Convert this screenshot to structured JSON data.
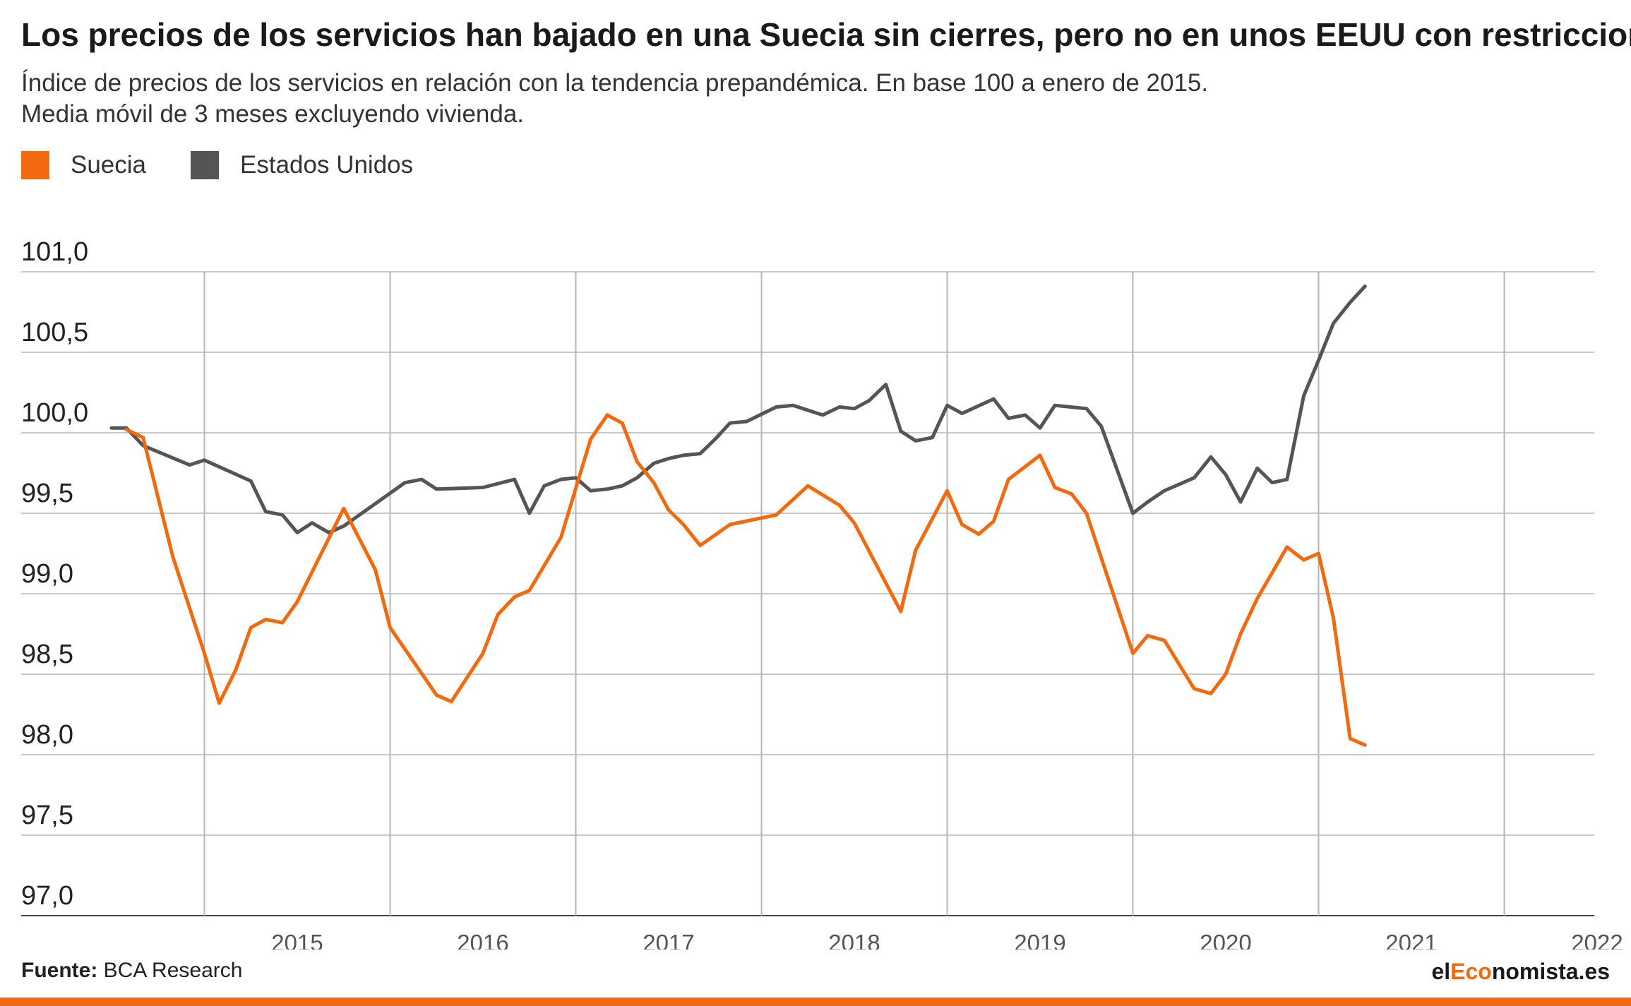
{
  "header": {
    "title": "Los precios de los servicios han bajado en una Suecia sin cierres, pero no en unos EEUU con restricciones",
    "subtitle_line1": "Índice de precios de los servicios en relación con la tendencia prepandémica. En base 100 a enero de 2015.",
    "subtitle_line2": "Media móvil de 3 meses excluyendo vivienda."
  },
  "legend": [
    {
      "label": "Suecia",
      "color": "#f26a10"
    },
    {
      "label": "Estados Unidos",
      "color": "#555555"
    }
  ],
  "footer": {
    "source_label": "Fuente:",
    "source_text": "BCA Research",
    "brand_prefix": "el",
    "brand_highlight": "Eco",
    "brand_suffix": "nomista.es",
    "brand_colors": {
      "text": "#1a1a1a",
      "highlight": "#f26a10"
    },
    "bar_color": "#f26a10"
  },
  "chart_data": {
    "type": "line",
    "ylim": [
      97.0,
      101.0
    ],
    "xlim": [
      2014.0,
      2022.0
    ],
    "y_ticks": [
      {
        "value": 101.0,
        "label": "101,0"
      },
      {
        "value": 100.5,
        "label": "100,5"
      },
      {
        "value": 100.0,
        "label": "100,0"
      },
      {
        "value": 99.5,
        "label": "99,5"
      },
      {
        "value": 99.0,
        "label": "99,0"
      },
      {
        "value": 98.5,
        "label": "98,5"
      },
      {
        "value": 98.0,
        "label": "98,0"
      },
      {
        "value": 97.5,
        "label": "97,5"
      },
      {
        "value": 97.0,
        "label": "97,0"
      }
    ],
    "x_ticks": [
      {
        "value": 2015,
        "label": "2015"
      },
      {
        "value": 2016,
        "label": "2016"
      },
      {
        "value": 2017,
        "label": "2017"
      },
      {
        "value": 2018,
        "label": "2018"
      },
      {
        "value": 2019,
        "label": "2019"
      },
      {
        "value": 2020,
        "label": "2020"
      },
      {
        "value": 2021,
        "label": "2021"
      },
      {
        "value": 2022,
        "label": "2022"
      }
    ],
    "x_gridlines": [
      2014.5,
      2015.5,
      2016.5,
      2017.5,
      2018.5,
      2019.5,
      2020.5,
      2021.5
    ],
    "grid": true,
    "legend_position": "top-left",
    "series": [
      {
        "name": "Suecia",
        "color": "#f26a10",
        "points": [
          [
            2014.08,
            100.02
          ],
          [
            2014.17,
            99.97
          ],
          [
            2014.33,
            99.23
          ],
          [
            2014.5,
            98.63
          ],
          [
            2014.58,
            98.32
          ],
          [
            2014.67,
            98.53
          ],
          [
            2014.75,
            98.79
          ],
          [
            2014.83,
            98.84
          ],
          [
            2014.92,
            98.82
          ],
          [
            2015.0,
            98.95
          ],
          [
            2015.25,
            99.53
          ],
          [
            2015.42,
            99.15
          ],
          [
            2015.5,
            98.79
          ],
          [
            2015.75,
            98.37
          ],
          [
            2015.83,
            98.33
          ],
          [
            2016.0,
            98.63
          ],
          [
            2016.08,
            98.87
          ],
          [
            2016.17,
            98.98
          ],
          [
            2016.25,
            99.02
          ],
          [
            2016.42,
            99.35
          ],
          [
            2016.58,
            99.96
          ],
          [
            2016.67,
            100.11
          ],
          [
            2016.75,
            100.06
          ],
          [
            2016.83,
            99.82
          ],
          [
            2016.92,
            99.69
          ],
          [
            2017.0,
            99.52
          ],
          [
            2017.08,
            99.43
          ],
          [
            2017.17,
            99.3
          ],
          [
            2017.33,
            99.43
          ],
          [
            2017.58,
            99.49
          ],
          [
            2017.75,
            99.67
          ],
          [
            2017.92,
            99.55
          ],
          [
            2018.0,
            99.44
          ],
          [
            2018.25,
            98.89
          ],
          [
            2018.33,
            99.27
          ],
          [
            2018.5,
            99.64
          ],
          [
            2018.58,
            99.43
          ],
          [
            2018.67,
            99.37
          ],
          [
            2018.75,
            99.45
          ],
          [
            2018.83,
            99.71
          ],
          [
            2019.0,
            99.86
          ],
          [
            2019.08,
            99.66
          ],
          [
            2019.17,
            99.62
          ],
          [
            2019.25,
            99.5
          ],
          [
            2019.5,
            98.63
          ],
          [
            2019.58,
            98.74
          ],
          [
            2019.67,
            98.71
          ],
          [
            2019.83,
            98.41
          ],
          [
            2019.92,
            98.38
          ],
          [
            2020.0,
            98.5
          ],
          [
            2020.08,
            98.75
          ],
          [
            2020.17,
            98.97
          ],
          [
            2020.33,
            99.29
          ],
          [
            2020.42,
            99.21
          ],
          [
            2020.5,
            99.25
          ],
          [
            2020.58,
            98.85
          ],
          [
            2020.67,
            98.1
          ],
          [
            2020.75,
            98.06
          ]
        ]
      },
      {
        "name": "Estados Unidos",
        "color": "#555555",
        "points": [
          [
            2014.0,
            100.03
          ],
          [
            2014.08,
            100.03
          ],
          [
            2014.17,
            99.92
          ],
          [
            2014.42,
            99.8
          ],
          [
            2014.5,
            99.83
          ],
          [
            2014.75,
            99.7
          ],
          [
            2014.83,
            99.51
          ],
          [
            2014.92,
            99.49
          ],
          [
            2015.0,
            99.38
          ],
          [
            2015.08,
            99.44
          ],
          [
            2015.17,
            99.38
          ],
          [
            2015.25,
            99.42
          ],
          [
            2015.58,
            99.69
          ],
          [
            2015.67,
            99.71
          ],
          [
            2015.75,
            99.65
          ],
          [
            2016.0,
            99.66
          ],
          [
            2016.17,
            99.71
          ],
          [
            2016.25,
            99.5
          ],
          [
            2016.33,
            99.67
          ],
          [
            2016.42,
            99.71
          ],
          [
            2016.5,
            99.72
          ],
          [
            2016.58,
            99.64
          ],
          [
            2016.67,
            99.65
          ],
          [
            2016.75,
            99.67
          ],
          [
            2016.83,
            99.72
          ],
          [
            2016.92,
            99.81
          ],
          [
            2017.0,
            99.84
          ],
          [
            2017.08,
            99.86
          ],
          [
            2017.17,
            99.87
          ],
          [
            2017.25,
            99.96
          ],
          [
            2017.33,
            100.06
          ],
          [
            2017.42,
            100.07
          ],
          [
            2017.58,
            100.16
          ],
          [
            2017.67,
            100.17
          ],
          [
            2017.75,
            100.14
          ],
          [
            2017.83,
            100.11
          ],
          [
            2017.92,
            100.16
          ],
          [
            2018.0,
            100.15
          ],
          [
            2018.08,
            100.2
          ],
          [
            2018.17,
            100.3
          ],
          [
            2018.25,
            100.01
          ],
          [
            2018.33,
            99.95
          ],
          [
            2018.42,
            99.97
          ],
          [
            2018.5,
            100.17
          ],
          [
            2018.58,
            100.12
          ],
          [
            2018.75,
            100.21
          ],
          [
            2018.83,
            100.09
          ],
          [
            2018.92,
            100.11
          ],
          [
            2019.0,
            100.03
          ],
          [
            2019.08,
            100.17
          ],
          [
            2019.25,
            100.15
          ],
          [
            2019.33,
            100.04
          ],
          [
            2019.5,
            99.5
          ],
          [
            2019.58,
            99.57
          ],
          [
            2019.67,
            99.64
          ],
          [
            2019.83,
            99.72
          ],
          [
            2019.92,
            99.85
          ],
          [
            2020.0,
            99.74
          ],
          [
            2020.08,
            99.57
          ],
          [
            2020.17,
            99.78
          ],
          [
            2020.25,
            99.69
          ],
          [
            2020.33,
            99.71
          ],
          [
            2020.42,
            100.23
          ],
          [
            2020.5,
            100.45
          ],
          [
            2020.58,
            100.68
          ],
          [
            2020.67,
            100.81
          ],
          [
            2020.75,
            100.91
          ]
        ]
      }
    ]
  }
}
